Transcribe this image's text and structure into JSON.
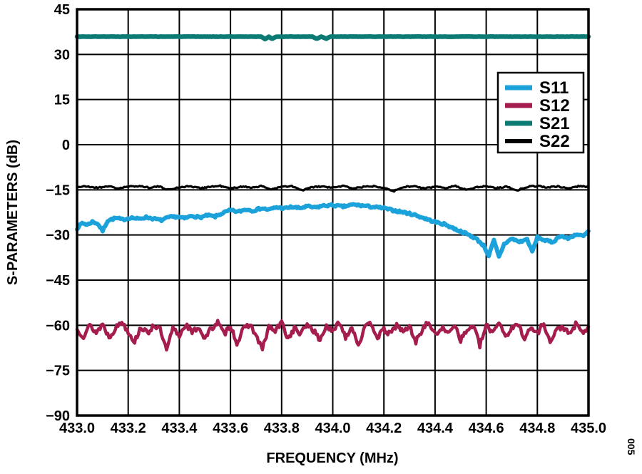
{
  "figure_tag": "005",
  "chart_data": {
    "type": "line",
    "title": "",
    "xlabel": "FREQUENCY (MHz)",
    "ylabel": "S-PARAMETERS (dB)",
    "xlim": [
      433.0,
      435.0
    ],
    "ylim": [
      -90,
      45
    ],
    "xticks": [
      433.0,
      433.2,
      433.4,
      433.6,
      433.8,
      434.0,
      434.2,
      434.4,
      434.6,
      434.8,
      435.0
    ],
    "yticks": [
      45,
      30,
      15,
      0,
      -15,
      -30,
      -45,
      -60,
      -75,
      -90
    ],
    "grid": true,
    "background": "#ffffff",
    "axis_color": "#000000",
    "legend": {
      "position": "top-right",
      "entries": [
        {
          "label": "S11",
          "color": "#1CA2DB",
          "lw": 7
        },
        {
          "label": "S12",
          "color": "#A41D4E",
          "lw": 7
        },
        {
          "label": "S21",
          "color": "#0B7B73",
          "lw": 7
        },
        {
          "label": "S22",
          "color": "#000000",
          "lw": 6
        }
      ]
    },
    "series": [
      {
        "name": "S11",
        "color": "#1CA2DB",
        "width": 6,
        "noise": 0.35,
        "seed": 7,
        "points": [
          [
            433.0,
            -27.8
          ],
          [
            433.02,
            -26.0
          ],
          [
            433.04,
            -26.6
          ],
          [
            433.06,
            -25.6
          ],
          [
            433.08,
            -26.2
          ],
          [
            433.1,
            -28.6
          ],
          [
            433.12,
            -25.2
          ],
          [
            433.15,
            -24.4
          ],
          [
            433.18,
            -24.9
          ],
          [
            433.21,
            -24.2
          ],
          [
            433.24,
            -24.7
          ],
          [
            433.27,
            -24.1
          ],
          [
            433.3,
            -24.6
          ],
          [
            433.33,
            -25.1
          ],
          [
            433.36,
            -24.1
          ],
          [
            433.39,
            -23.9
          ],
          [
            433.42,
            -24.5
          ],
          [
            433.45,
            -23.6
          ],
          [
            433.48,
            -24.2
          ],
          [
            433.51,
            -23.5
          ],
          [
            433.54,
            -23.9
          ],
          [
            433.57,
            -22.7
          ],
          [
            433.6,
            -21.8
          ],
          [
            433.63,
            -22.3
          ],
          [
            433.66,
            -21.5
          ],
          [
            433.69,
            -21.9
          ],
          [
            433.72,
            -21.1
          ],
          [
            433.75,
            -21.6
          ],
          [
            433.78,
            -20.8
          ],
          [
            433.81,
            -21.2
          ],
          [
            433.84,
            -20.7
          ],
          [
            433.87,
            -21.1
          ],
          [
            433.9,
            -20.5
          ],
          [
            433.93,
            -20.9
          ],
          [
            433.96,
            -20.3
          ],
          [
            434.0,
            -20.1
          ],
          [
            434.04,
            -20.6
          ],
          [
            434.08,
            -19.9
          ],
          [
            434.12,
            -20.3
          ],
          [
            434.16,
            -20.7
          ],
          [
            434.2,
            -21.1
          ],
          [
            434.24,
            -21.9
          ],
          [
            434.28,
            -22.5
          ],
          [
            434.32,
            -23.3
          ],
          [
            434.36,
            -24.5
          ],
          [
            434.4,
            -25.7
          ],
          [
            434.44,
            -26.5
          ],
          [
            434.48,
            -28.1
          ],
          [
            434.52,
            -29.5
          ],
          [
            434.56,
            -31.2
          ],
          [
            434.59,
            -33.5
          ],
          [
            434.61,
            -36.9
          ],
          [
            434.63,
            -31.8
          ],
          [
            434.65,
            -37.3
          ],
          [
            434.67,
            -33.0
          ],
          [
            434.7,
            -31.2
          ],
          [
            434.73,
            -32.3
          ],
          [
            434.76,
            -31.4
          ],
          [
            434.78,
            -35.6
          ],
          [
            434.8,
            -30.8
          ],
          [
            434.83,
            -31.8
          ],
          [
            434.86,
            -32.4
          ],
          [
            434.89,
            -30.2
          ],
          [
            434.92,
            -31.2
          ],
          [
            434.95,
            -29.8
          ],
          [
            434.98,
            -30.4
          ],
          [
            435.0,
            -28.8
          ]
        ]
      },
      {
        "name": "S12",
        "color": "#A41D4E",
        "width": 4.5,
        "noise": 0.9,
        "seed": 13,
        "x0": 433.0,
        "dx": 0.025,
        "values": [
          -61.5,
          -63.5,
          -60.0,
          -62.5,
          -59.5,
          -64.0,
          -61.0,
          -58.8,
          -62.0,
          -65.5,
          -60.5,
          -62.8,
          -59.8,
          -61.5,
          -68.5,
          -61.0,
          -63.5,
          -59.5,
          -62.5,
          -60.5,
          -64.5,
          -61.0,
          -59.0,
          -63.0,
          -60.0,
          -66.0,
          -61.5,
          -59.5,
          -63.5,
          -68.0,
          -60.5,
          -62.0,
          -59.0,
          -64.5,
          -61.0,
          -63.0,
          -59.5,
          -61.8,
          -65.0,
          -60.0,
          -62.5,
          -58.8,
          -63.8,
          -60.5,
          -66.5,
          -61.0,
          -59.3,
          -64.0,
          -61.5,
          -63.0,
          -59.8,
          -62.3,
          -60.3,
          -65.5,
          -61.3,
          -58.9,
          -63.3,
          -60.8,
          -62.8,
          -59.4,
          -64.8,
          -61.8,
          -59.9,
          -66.8,
          -60.2,
          -62.2,
          -58.7,
          -63.6,
          -61.2,
          -59.6,
          -64.2,
          -60.9,
          -62.6,
          -59.2,
          -65.8,
          -61.6,
          -60.4,
          -63.2,
          -59.7,
          -62.4,
          -61.0
        ]
      },
      {
        "name": "S21",
        "color": "#0B7B73",
        "width": 6.5,
        "noise": 0.04,
        "seed": 3,
        "points": [
          [
            433.0,
            35.9
          ],
          [
            433.72,
            35.9
          ],
          [
            433.735,
            35.1
          ],
          [
            433.75,
            35.9
          ],
          [
            433.762,
            35.1
          ],
          [
            433.778,
            35.9
          ],
          [
            433.92,
            35.9
          ],
          [
            433.938,
            35.2
          ],
          [
            433.955,
            35.9
          ],
          [
            433.975,
            35.2
          ],
          [
            433.99,
            35.9
          ],
          [
            435.0,
            35.9
          ]
        ]
      },
      {
        "name": "S22",
        "color": "#000000",
        "width": 3.2,
        "noise": 0.22,
        "seed": 21,
        "x0": 433.0,
        "dx": 0.04,
        "values": [
          -14.0,
          -13.9,
          -14.3,
          -13.8,
          -14.5,
          -14.0,
          -13.7,
          -14.2,
          -13.9,
          -15.0,
          -14.1,
          -13.8,
          -14.4,
          -14.0,
          -13.7,
          -14.6,
          -13.9,
          -14.2,
          -13.8,
          -14.8,
          -14.0,
          -13.8,
          -15.2,
          -14.1,
          -13.9,
          -14.3,
          -13.7,
          -14.5,
          -14.0,
          -13.8,
          -14.2,
          -15.4,
          -14.0,
          -13.8,
          -14.6,
          -13.9,
          -14.3,
          -13.7,
          -15.0,
          -14.1,
          -13.8,
          -14.4,
          -13.9,
          -15.2,
          -14.0,
          -13.7,
          -14.2,
          -13.9,
          -14.5,
          -13.8,
          -14.0
        ]
      }
    ]
  }
}
